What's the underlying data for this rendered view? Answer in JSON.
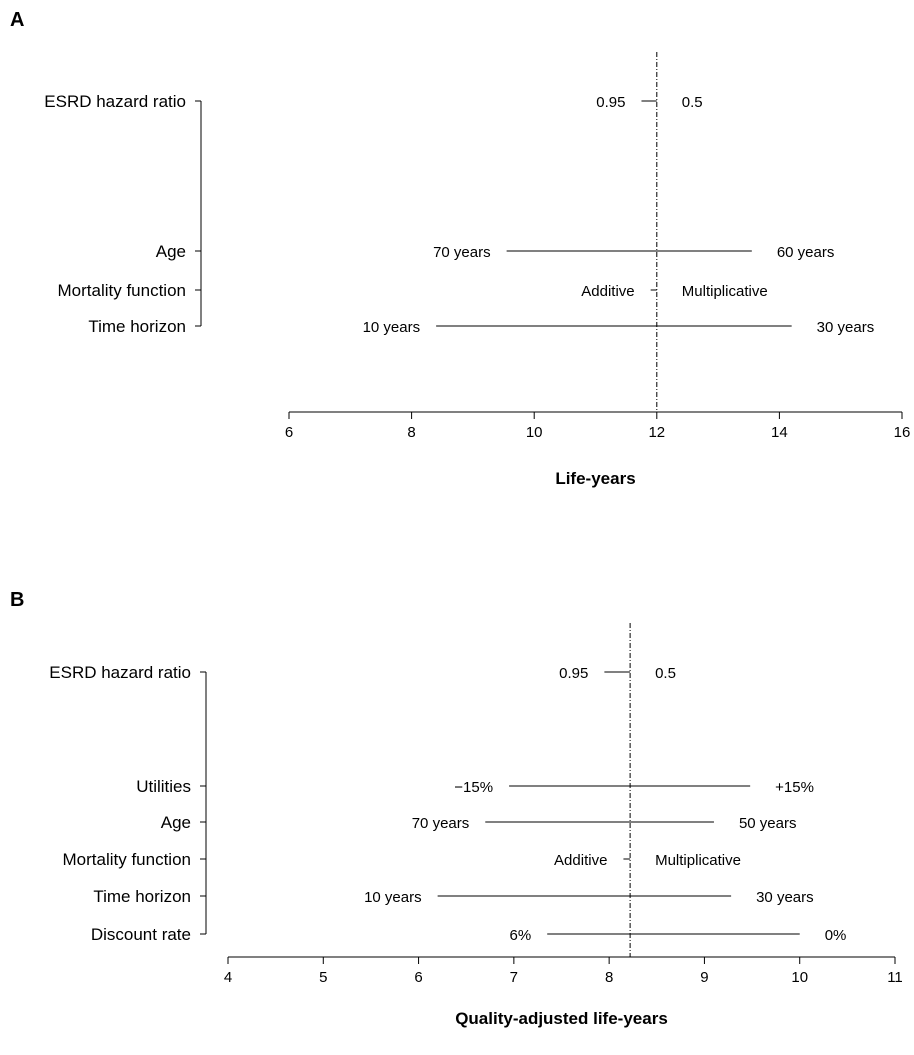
{
  "chart_data": [
    {
      "type": "bar",
      "subtype": "tornado",
      "panel": "A",
      "xlabel": "Life-years",
      "xlim": [
        6,
        16
      ],
      "xticks": [
        6,
        8,
        10,
        12,
        14,
        16
      ],
      "base": 12,
      "rows": [
        {
          "label": "ESRD hazard ratio",
          "low": 11.75,
          "high": 12.0,
          "low_label": "0.95",
          "high_label": "0.5"
        },
        {
          "label": "Age",
          "low": 9.55,
          "high": 13.55,
          "low_label": "70 years",
          "high_label": "60 years"
        },
        {
          "label": "Mortality function",
          "low": 11.9,
          "high": 12.0,
          "low_label": "Additive",
          "high_label": "Multiplicative"
        },
        {
          "label": "Time horizon",
          "low": 8.4,
          "high": 14.2,
          "low_label": "10 years",
          "high_label": "30 years"
        }
      ]
    },
    {
      "type": "bar",
      "subtype": "tornado",
      "panel": "B",
      "xlabel": "Quality-adjusted life-years",
      "xlim": [
        4,
        11
      ],
      "xticks": [
        4,
        5,
        6,
        7,
        8,
        9,
        10,
        11
      ],
      "base": 8.22,
      "rows": [
        {
          "label": "ESRD hazard ratio",
          "low": 7.95,
          "high": 8.22,
          "low_label": "0.95",
          "high_label": "0.5"
        },
        {
          "label": "Utilities",
          "low": 6.95,
          "high": 9.48,
          "low_label": "−15%",
          "high_label": "+15%"
        },
        {
          "label": "Age",
          "low": 6.7,
          "high": 9.1,
          "low_label": "70 years",
          "high_label": "50 years"
        },
        {
          "label": "Mortality function",
          "low": 8.15,
          "high": 8.22,
          "low_label": "Additive",
          "high_label": "Multiplicative"
        },
        {
          "label": "Time horizon",
          "low": 6.2,
          "high": 9.28,
          "low_label": "10 years",
          "high_label": "30 years"
        },
        {
          "label": "Discount rate",
          "low": 7.35,
          "high": 10.0,
          "low_label": "6%",
          "high_label": "0%"
        }
      ]
    }
  ]
}
